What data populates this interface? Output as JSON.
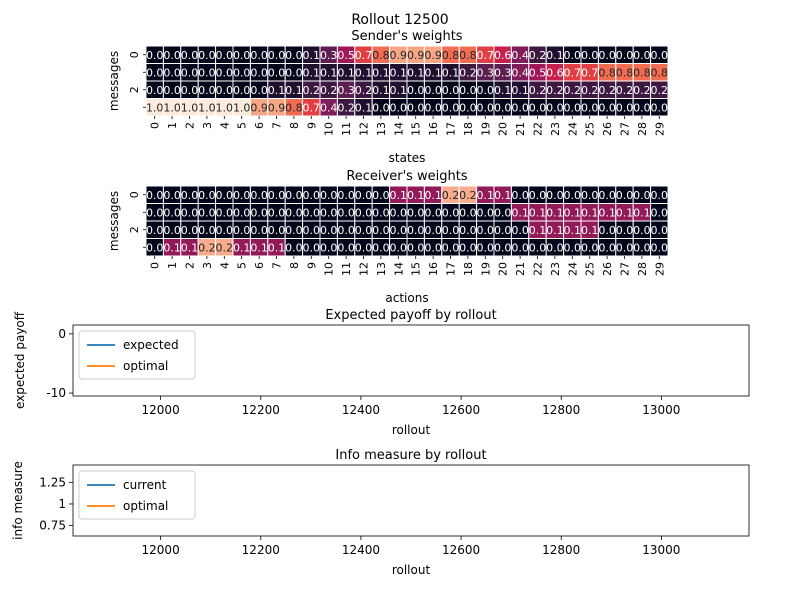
{
  "figure": {
    "suptitle": "Rollout 12500"
  },
  "chart_data": [
    {
      "type": "heatmap",
      "title": "Sender's weights",
      "xlabel": "states",
      "ylabel": "messages",
      "x_categories": [
        "0",
        "1",
        "2",
        "3",
        "4",
        "5",
        "6",
        "7",
        "8",
        "9",
        "10",
        "11",
        "12",
        "13",
        "14",
        "15",
        "16",
        "17",
        "18",
        "19",
        "20",
        "21",
        "22",
        "23",
        "24",
        "25",
        "26",
        "27",
        "28",
        "29"
      ],
      "y_tick_labels": [
        "0",
        "",
        "2",
        ""
      ],
      "values": [
        [
          0.0,
          0.0,
          0.0,
          0.0,
          0.0,
          0.0,
          0.0,
          0.0,
          0.0,
          0.1,
          0.3,
          0.5,
          0.7,
          0.8,
          0.9,
          0.9,
          0.9,
          0.8,
          0.8,
          0.7,
          0.6,
          0.4,
          0.2,
          0.1,
          0.0,
          0.0,
          0.0,
          0.0,
          0.0,
          0.0
        ],
        [
          0.0,
          0.0,
          0.0,
          0.0,
          0.0,
          0.0,
          0.0,
          0.0,
          0.0,
          0.1,
          0.1,
          0.1,
          0.1,
          0.1,
          0.1,
          0.1,
          0.1,
          0.1,
          0.2,
          0.3,
          0.3,
          0.4,
          0.5,
          0.6,
          0.7,
          0.7,
          0.8,
          0.8,
          0.8,
          0.8
        ],
        [
          0.0,
          0.0,
          0.0,
          0.0,
          0.0,
          0.0,
          0.0,
          0.1,
          0.1,
          0.2,
          0.2,
          0.3,
          0.2,
          0.1,
          0.1,
          0.0,
          0.0,
          0.0,
          0.0,
          0.0,
          0.1,
          0.1,
          0.2,
          0.2,
          0.2,
          0.2,
          0.2,
          0.2,
          0.2,
          0.2
        ],
        [
          1.0,
          1.0,
          1.0,
          1.0,
          1.0,
          1.0,
          0.9,
          0.9,
          0.8,
          0.7,
          0.4,
          0.2,
          0.1,
          0.0,
          0.0,
          0.0,
          0.0,
          0.0,
          0.0,
          0.0,
          0.0,
          0.0,
          0.0,
          0.0,
          0.0,
          0.0,
          0.0,
          0.0,
          0.0,
          0.0
        ]
      ],
      "colormap": "rocket",
      "vmin": 0.0,
      "vmax": 1.0
    },
    {
      "type": "heatmap",
      "title": "Receiver's weights",
      "xlabel": "actions",
      "ylabel": "messages",
      "x_categories": [
        "0",
        "1",
        "2",
        "3",
        "4",
        "5",
        "6",
        "7",
        "8",
        "9",
        "10",
        "11",
        "12",
        "13",
        "14",
        "15",
        "16",
        "17",
        "18",
        "19",
        "20",
        "21",
        "22",
        "23",
        "24",
        "25",
        "26",
        "27",
        "28",
        "29"
      ],
      "y_tick_labels": [
        "0",
        "",
        "2",
        ""
      ],
      "values": [
        [
          0.0,
          0.0,
          0.0,
          0.0,
          0.0,
          0.0,
          0.0,
          0.0,
          0.0,
          0.0,
          0.0,
          0.0,
          0.0,
          0.0,
          0.1,
          0.1,
          0.1,
          0.2,
          0.2,
          0.1,
          0.1,
          0.0,
          0.0,
          0.0,
          0.0,
          0.0,
          0.0,
          0.0,
          0.0,
          0.0
        ],
        [
          0.0,
          0.0,
          0.0,
          0.0,
          0.0,
          0.0,
          0.0,
          0.0,
          0.0,
          0.0,
          0.0,
          0.0,
          0.0,
          0.0,
          0.0,
          0.0,
          0.0,
          0.0,
          0.0,
          0.0,
          0.0,
          0.1,
          0.1,
          0.1,
          0.1,
          0.1,
          0.1,
          0.1,
          0.1,
          0.0
        ],
        [
          0.0,
          0.0,
          0.0,
          0.0,
          0.0,
          0.0,
          0.0,
          0.0,
          0.0,
          0.0,
          0.0,
          0.0,
          0.0,
          0.0,
          0.0,
          0.0,
          0.0,
          0.0,
          0.0,
          0.0,
          0.0,
          0.0,
          0.1,
          0.1,
          0.1,
          0.1,
          0.0,
          0.0,
          0.0,
          0.0
        ],
        [
          0.0,
          0.1,
          0.1,
          0.2,
          0.2,
          0.1,
          0.1,
          0.1,
          0.0,
          0.0,
          0.0,
          0.0,
          0.0,
          0.0,
          0.0,
          0.0,
          0.0,
          0.0,
          0.0,
          0.0,
          0.0,
          0.0,
          0.0,
          0.0,
          0.0,
          0.0,
          0.0,
          0.0,
          0.0,
          0.0
        ]
      ],
      "colormap": "rocket",
      "vmin": 0.0,
      "vmax": 0.22
    },
    {
      "type": "line",
      "title": "Expected payoff by rollout",
      "xlabel": "rollout",
      "ylabel": "expected payoff",
      "xlim": [
        11825,
        13175
      ],
      "ylim": [
        -10.5,
        1.5
      ],
      "x_ticks": [
        12000,
        12200,
        12400,
        12600,
        12800,
        13000
      ],
      "y_ticks": [
        0,
        -10
      ],
      "series": [
        {
          "name": "expected",
          "color": "#1f77b4",
          "x": [],
          "y": []
        },
        {
          "name": "optimal",
          "color": "#ff7f0e",
          "x": [],
          "y": []
        }
      ],
      "legend": "upper-left",
      "grid": false
    },
    {
      "type": "line",
      "title": "Info measure by rollout",
      "xlabel": "rollout",
      "ylabel": "info measure",
      "xlim": [
        11825,
        13175
      ],
      "ylim": [
        0.63,
        1.45
      ],
      "x_ticks": [
        12000,
        12200,
        12400,
        12600,
        12800,
        13000
      ],
      "y_ticks": [
        1.25,
        1.0,
        0.75
      ],
      "series": [
        {
          "name": "current",
          "color": "#1f77b4",
          "x": [],
          "y": []
        },
        {
          "name": "optimal",
          "color": "#ff7f0e",
          "x": [],
          "y": []
        }
      ],
      "legend": "upper-left",
      "grid": false
    }
  ]
}
